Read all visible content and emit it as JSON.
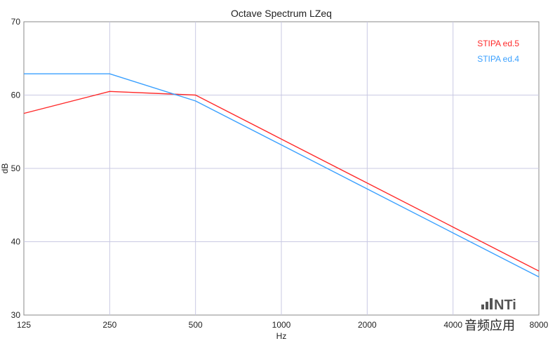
{
  "chart_data": {
    "type": "line",
    "title": "Octave Spectrum LZeq",
    "xlabel": "Hz",
    "ylabel": "dB",
    "x_scale": "log2",
    "x": [
      125,
      250,
      500,
      1000,
      2000,
      4000,
      8000
    ],
    "x_tick_labels": [
      "125",
      "250",
      "500",
      "1000",
      "2000",
      "4000",
      "8000"
    ],
    "ylim": [
      30,
      70
    ],
    "y_ticks": [
      30,
      40,
      50,
      60,
      70
    ],
    "grid": true,
    "legend_position": "top-right",
    "series": [
      {
        "name": "STIPA ed.5",
        "color": "#ff2a2a",
        "values": [
          57.5,
          60.5,
          60.0,
          54.0,
          48.0,
          42.0,
          36.0
        ]
      },
      {
        "name": "STIPA ed.4",
        "color": "#3aa0ff",
        "values": [
          62.9,
          62.9,
          59.2,
          53.2,
          47.2,
          41.2,
          35.2
        ]
      }
    ]
  },
  "branding": {
    "logo_text": "NTi",
    "logo_icon": "bar-signal-icon",
    "watermark": "音频应用"
  }
}
